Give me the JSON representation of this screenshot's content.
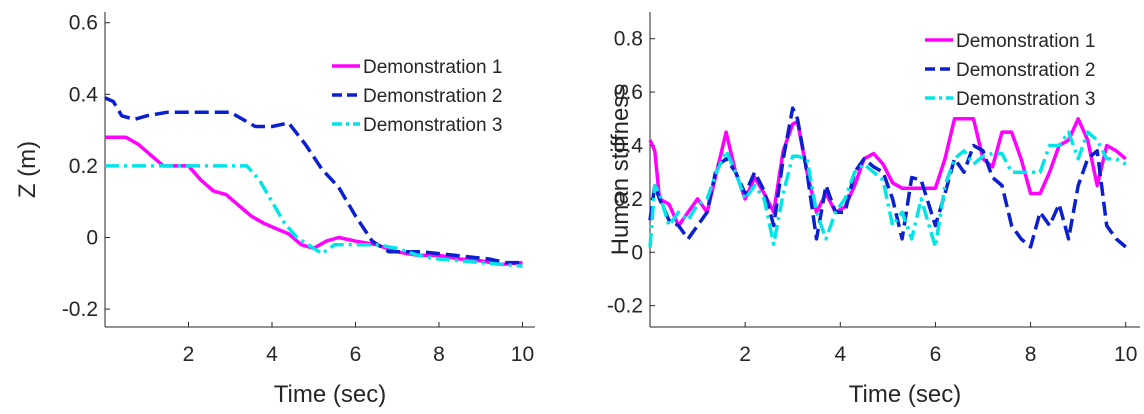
{
  "chart_data": [
    {
      "type": "line",
      "title": "",
      "xlabel": "Time (sec)",
      "ylabel": "Z (m)",
      "xlim": [
        0,
        10.3
      ],
      "ylim": [
        -0.25,
        0.63
      ],
      "xticks": [
        2,
        4,
        6,
        8,
        10
      ],
      "xtick_labels": [
        "2",
        "4",
        "6",
        "8",
        "10"
      ],
      "yticks": [
        -0.2,
        0,
        0.2,
        0.4,
        0.6
      ],
      "ytick_labels": [
        "-0.2",
        "0",
        "0.2",
        "0.4",
        "0.6"
      ],
      "grid": false,
      "legend_position": "top-right",
      "series": [
        {
          "name": "Demonstration 1",
          "color": "#ff00ff",
          "dash": "solid",
          "x": [
            0,
            0.5,
            0.8,
            1.1,
            1.4,
            1.8,
            2.0,
            2.3,
            2.6,
            2.9,
            3.2,
            3.5,
            3.8,
            4.1,
            4.4,
            4.7,
            5.0,
            5.3,
            5.6,
            6.0,
            6.5,
            7.0,
            7.5,
            8.0,
            8.5,
            9.0,
            9.5,
            10.0
          ],
          "y": [
            0.28,
            0.28,
            0.26,
            0.23,
            0.2,
            0.2,
            0.2,
            0.16,
            0.13,
            0.12,
            0.09,
            0.06,
            0.04,
            0.025,
            0.01,
            -0.02,
            -0.03,
            -0.01,
            0.0,
            -0.01,
            -0.02,
            -0.04,
            -0.05,
            -0.05,
            -0.06,
            -0.065,
            -0.075,
            -0.07
          ]
        },
        {
          "name": "Demonstration 2",
          "color": "#0a1fd0",
          "dash": "dashed",
          "x": [
            0,
            0.2,
            0.4,
            0.7,
            1.0,
            1.5,
            2.0,
            2.5,
            3.0,
            3.3,
            3.6,
            4.0,
            4.4,
            4.8,
            5.2,
            5.6,
            6.0,
            6.4,
            6.8,
            7.2,
            7.6,
            8.0,
            8.4,
            8.8,
            9.2,
            9.6,
            10.0
          ],
          "y": [
            0.39,
            0.38,
            0.34,
            0.33,
            0.34,
            0.35,
            0.35,
            0.35,
            0.35,
            0.33,
            0.31,
            0.31,
            0.32,
            0.26,
            0.19,
            0.14,
            0.06,
            -0.01,
            -0.04,
            -0.04,
            -0.04,
            -0.045,
            -0.05,
            -0.055,
            -0.06,
            -0.07,
            -0.07
          ]
        },
        {
          "name": "Demonstration 3",
          "color": "#00e6e6",
          "dash": "dashdot",
          "x": [
            0,
            0.5,
            1.0,
            1.5,
            2.0,
            2.5,
            3.0,
            3.4,
            3.7,
            4.0,
            4.3,
            4.6,
            5.0,
            5.2,
            5.5,
            6.0,
            6.5,
            7.0,
            7.5,
            8.0,
            8.5,
            9.0,
            9.5,
            10.0
          ],
          "y": [
            0.2,
            0.2,
            0.2,
            0.2,
            0.2,
            0.2,
            0.2,
            0.2,
            0.16,
            0.1,
            0.04,
            0.0,
            -0.03,
            -0.045,
            -0.02,
            -0.02,
            -0.02,
            -0.03,
            -0.05,
            -0.06,
            -0.065,
            -0.07,
            -0.075,
            -0.08
          ]
        }
      ]
    },
    {
      "type": "line",
      "title": "",
      "xlabel": "Time (sec)",
      "ylabel": "Human stiffness",
      "xlim": [
        0,
        10.3
      ],
      "ylim": [
        -0.28,
        0.9
      ],
      "xticks": [
        2,
        4,
        6,
        8,
        10
      ],
      "xtick_labels": [
        "2",
        "4",
        "6",
        "8",
        "10"
      ],
      "yticks": [
        -0.2,
        0,
        0.2,
        0.4,
        0.6,
        0.8
      ],
      "ytick_labels": [
        "-0.2",
        "0",
        "0.2",
        "0.4",
        "0.6",
        "0.8"
      ],
      "grid": false,
      "legend_position": "top-right",
      "series": [
        {
          "name": "Demonstration 1",
          "color": "#ff00ff",
          "dash": "solid",
          "x": [
            0,
            0.1,
            0.2,
            0.4,
            0.6,
            0.8,
            1.0,
            1.2,
            1.4,
            1.6,
            1.8,
            2.0,
            2.2,
            2.4,
            2.6,
            2.8,
            3.0,
            3.1,
            3.3,
            3.5,
            3.7,
            3.9,
            4.1,
            4.3,
            4.5,
            4.7,
            4.9,
            5.1,
            5.3,
            5.5,
            5.7,
            6.0,
            6.2,
            6.4,
            6.6,
            6.8,
            7.0,
            7.2,
            7.4,
            7.6,
            7.8,
            8.0,
            8.2,
            8.4,
            8.6,
            8.8,
            9.0,
            9.2,
            9.4,
            9.6,
            9.8,
            10.0
          ],
          "y": [
            0.42,
            0.38,
            0.2,
            0.18,
            0.1,
            0.15,
            0.2,
            0.15,
            0.3,
            0.45,
            0.3,
            0.2,
            0.28,
            0.22,
            0.15,
            0.38,
            0.48,
            0.49,
            0.3,
            0.15,
            0.22,
            0.15,
            0.17,
            0.25,
            0.35,
            0.37,
            0.33,
            0.26,
            0.24,
            0.24,
            0.24,
            0.24,
            0.35,
            0.5,
            0.5,
            0.5,
            0.35,
            0.32,
            0.45,
            0.45,
            0.35,
            0.22,
            0.22,
            0.3,
            0.4,
            0.42,
            0.5,
            0.42,
            0.25,
            0.4,
            0.38,
            0.35
          ]
        },
        {
          "name": "Demonstration 2",
          "color": "#0a1fd0",
          "dash": "dashed",
          "x": [
            0,
            0.1,
            0.2,
            0.4,
            0.6,
            0.8,
            1.0,
            1.2,
            1.4,
            1.6,
            1.8,
            2.0,
            2.2,
            2.4,
            2.6,
            2.8,
            3.0,
            3.1,
            3.3,
            3.5,
            3.7,
            3.9,
            4.1,
            4.3,
            4.5,
            4.7,
            4.9,
            5.1,
            5.3,
            5.5,
            5.7,
            6.0,
            6.2,
            6.4,
            6.6,
            6.8,
            7.0,
            7.2,
            7.4,
            7.6,
            7.8,
            8.0,
            8.2,
            8.4,
            8.6,
            8.8,
            9.0,
            9.2,
            9.4,
            9.6,
            9.8,
            10.0
          ],
          "y": [
            0.12,
            0.25,
            0.2,
            0.12,
            0.1,
            0.05,
            0.1,
            0.15,
            0.32,
            0.35,
            0.3,
            0.22,
            0.3,
            0.23,
            0.1,
            0.35,
            0.54,
            0.5,
            0.3,
            0.05,
            0.25,
            0.15,
            0.15,
            0.3,
            0.35,
            0.32,
            0.3,
            0.2,
            0.05,
            0.28,
            0.27,
            0.1,
            0.22,
            0.35,
            0.3,
            0.4,
            0.38,
            0.28,
            0.25,
            0.1,
            0.05,
            0.02,
            0.15,
            0.1,
            0.18,
            0.05,
            0.25,
            0.35,
            0.38,
            0.1,
            0.05,
            0.02
          ]
        },
        {
          "name": "Demonstration 3",
          "color": "#00e6e6",
          "dash": "dashdot",
          "x": [
            0,
            0.1,
            0.2,
            0.4,
            0.6,
            0.8,
            1.0,
            1.2,
            1.4,
            1.6,
            1.8,
            2.0,
            2.2,
            2.4,
            2.6,
            2.8,
            3.0,
            3.1,
            3.3,
            3.5,
            3.7,
            3.9,
            4.1,
            4.3,
            4.5,
            4.7,
            4.9,
            5.1,
            5.3,
            5.5,
            5.7,
            6.0,
            6.2,
            6.4,
            6.6,
            6.8,
            7.0,
            7.2,
            7.4,
            7.6,
            7.8,
            8.0,
            8.2,
            8.4,
            8.6,
            8.8,
            9.0,
            9.2,
            9.4,
            9.6,
            9.8,
            10.0
          ],
          "y": [
            0.02,
            0.25,
            0.22,
            0.1,
            0.15,
            0.12,
            0.18,
            0.2,
            0.3,
            0.38,
            0.3,
            0.2,
            0.25,
            0.2,
            0.03,
            0.22,
            0.36,
            0.36,
            0.35,
            0.15,
            0.05,
            0.15,
            0.2,
            0.3,
            0.33,
            0.3,
            0.27,
            0.1,
            0.15,
            0.05,
            0.2,
            0.02,
            0.25,
            0.35,
            0.38,
            0.33,
            0.36,
            0.37,
            0.37,
            0.3,
            0.3,
            0.3,
            0.3,
            0.4,
            0.4,
            0.45,
            0.35,
            0.45,
            0.42,
            0.35,
            0.35,
            0.33
          ]
        }
      ]
    }
  ]
}
